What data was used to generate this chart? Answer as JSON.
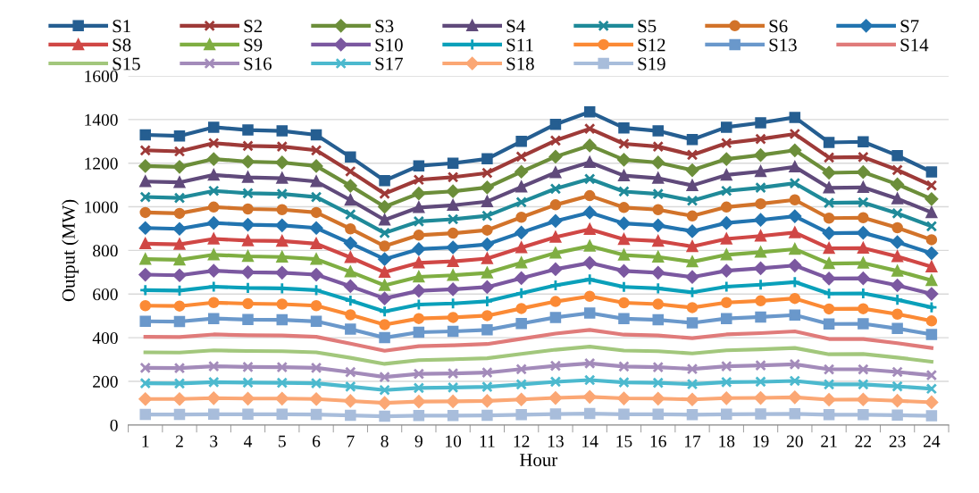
{
  "chart_data": {
    "type": "line",
    "xlabel": "Hour",
    "ylabel": "Output (MW)",
    "categories": [
      "1",
      "2",
      "3",
      "4",
      "5",
      "6",
      "7",
      "8",
      "9",
      "10",
      "11",
      "12",
      "13",
      "14",
      "15",
      "16",
      "17",
      "18",
      "19",
      "20",
      "21",
      "22",
      "23",
      "24"
    ],
    "ylim": [
      0,
      1600
    ],
    "yticks": [
      0,
      200,
      400,
      600,
      800,
      1000,
      1200,
      1400,
      1600
    ],
    "grid": "y",
    "legend": "top",
    "series": [
      {
        "name": "S1",
        "color": "#255e91",
        "marker": "square",
        "values": [
          1330,
          1325,
          1365,
          1352,
          1348,
          1330,
          1228,
          1120,
          1188,
          1200,
          1220,
          1300,
          1378,
          1435,
          1362,
          1348,
          1308,
          1365,
          1385,
          1410,
          1295,
          1298,
          1235,
          1160
        ]
      },
      {
        "name": "S2",
        "color": "#9e3a38",
        "marker": "cross",
        "values": [
          1259,
          1254,
          1292,
          1279,
          1276,
          1259,
          1162,
          1060,
          1124,
          1136,
          1155,
          1230,
          1304,
          1358,
          1289,
          1276,
          1238,
          1292,
          1311,
          1334,
          1226,
          1228,
          1169,
          1098
        ]
      },
      {
        "name": "S3",
        "color": "#6c8e3a",
        "marker": "diamond",
        "values": [
          1187,
          1183,
          1219,
          1207,
          1203,
          1187,
          1096,
          1000,
          1061,
          1071,
          1089,
          1161,
          1230,
          1281,
          1216,
          1203,
          1168,
          1219,
          1237,
          1259,
          1156,
          1159,
          1103,
          1036
        ]
      },
      {
        "name": "S4",
        "color": "#604a7b",
        "marker": "triangle",
        "values": [
          1116,
          1112,
          1146,
          1135,
          1131,
          1116,
          1031,
          940,
          997,
          1007,
          1024,
          1091,
          1157,
          1204,
          1143,
          1131,
          1098,
          1146,
          1162,
          1183,
          1087,
          1089,
          1037,
          974
        ]
      },
      {
        "name": "S5",
        "color": "#1f8a99",
        "marker": "cross",
        "values": [
          1045,
          1041,
          1073,
          1062,
          1059,
          1045,
          965,
          880,
          933,
          943,
          959,
          1021,
          1083,
          1128,
          1070,
          1059,
          1028,
          1073,
          1088,
          1108,
          1018,
          1020,
          970,
          911
        ]
      },
      {
        "name": "S6",
        "color": "#d2732a",
        "marker": "circle",
        "values": [
          974,
          970,
          999,
          990,
          987,
          974,
          899,
          820,
          870,
          879,
          893,
          952,
          1009,
          1051,
          997,
          987,
          958,
          999,
          1014,
          1032,
          948,
          950,
          904,
          849
        ]
      },
      {
        "name": "S7",
        "color": "#2274b0",
        "marker": "diamond",
        "values": [
          903,
          899,
          926,
          918,
          915,
          903,
          833,
          760,
          806,
          814,
          828,
          882,
          935,
          974,
          924,
          915,
          888,
          926,
          940,
          957,
          879,
          881,
          838,
          787
        ]
      },
      {
        "name": "S8",
        "color": "#d04745",
        "marker": "triangle",
        "values": [
          831,
          828,
          853,
          845,
          843,
          831,
          768,
          700,
          743,
          750,
          763,
          813,
          861,
          897,
          851,
          843,
          818,
          853,
          866,
          882,
          810,
          811,
          772,
          725
        ]
      },
      {
        "name": "S9",
        "color": "#7fae42",
        "marker": "triangle",
        "values": [
          760,
          757,
          780,
          773,
          770,
          760,
          702,
          640,
          679,
          686,
          697,
          743,
          788,
          820,
          779,
          770,
          748,
          780,
          792,
          806,
          740,
          742,
          706,
          663
        ]
      },
      {
        "name": "S10",
        "color": "#7b58a0",
        "marker": "diamond",
        "values": [
          689,
          686,
          707,
          700,
          698,
          689,
          636,
          580,
          615,
          622,
          632,
          673,
          714,
          743,
          706,
          698,
          678,
          707,
          718,
          731,
          671,
          672,
          640,
          601
        ]
      },
      {
        "name": "S11",
        "color": "#0aa0ba",
        "marker": "plus",
        "values": [
          618,
          616,
          634,
          628,
          626,
          618,
          570,
          520,
          552,
          557,
          567,
          604,
          640,
          667,
          633,
          626,
          608,
          634,
          643,
          655,
          602,
          603,
          574,
          539
        ]
      },
      {
        "name": "S12",
        "color": "#fb8a35",
        "marker": "circle",
        "values": [
          547,
          545,
          561,
          556,
          554,
          547,
          505,
          460,
          488,
          493,
          501,
          534,
          566,
          590,
          560,
          554,
          538,
          561,
          569,
          580,
          532,
          533,
          508,
          477
        ]
      },
      {
        "name": "S13",
        "color": "#6a98cb",
        "marker": "square",
        "values": [
          475,
          474,
          488,
          483,
          482,
          475,
          439,
          400,
          425,
          429,
          436,
          465,
          493,
          513,
          487,
          482,
          468,
          488,
          495,
          504,
          463,
          464,
          442,
          415
        ]
      },
      {
        "name": "S14",
        "color": "#e07b7a",
        "marker": "none",
        "values": [
          404,
          403,
          415,
          411,
          410,
          404,
          373,
          340,
          361,
          365,
          371,
          395,
          419,
          436,
          414,
          410,
          398,
          415,
          421,
          429,
          394,
          394,
          375,
          353
        ]
      },
      {
        "name": "S15",
        "color": "#a2c77c",
        "marker": "none",
        "values": [
          333,
          332,
          342,
          339,
          338,
          333,
          308,
          280,
          297,
          301,
          306,
          326,
          345,
          359,
          341,
          338,
          328,
          342,
          347,
          353,
          324,
          325,
          309,
          290
        ]
      },
      {
        "name": "S16",
        "color": "#a38bba",
        "marker": "cross",
        "values": [
          262,
          261,
          269,
          266,
          265,
          262,
          242,
          220,
          234,
          236,
          240,
          256,
          271,
          282,
          268,
          265,
          257,
          269,
          273,
          278,
          255,
          255,
          243,
          228
        ]
      },
      {
        "name": "S17",
        "color": "#4cb9ce",
        "marker": "cross",
        "values": [
          191,
          190,
          196,
          194,
          193,
          191,
          176,
          160,
          170,
          172,
          175,
          186,
          198,
          206,
          195,
          193,
          187,
          196,
          198,
          202,
          186,
          186,
          177,
          166
        ]
      },
      {
        "name": "S18",
        "color": "#fba774",
        "marker": "diamond",
        "values": [
          119,
          119,
          123,
          121,
          121,
          119,
          110,
          101,
          107,
          108,
          110,
          117,
          124,
          129,
          122,
          121,
          117,
          123,
          124,
          127,
          116,
          117,
          111,
          104
        ]
      },
      {
        "name": "S19",
        "color": "#a8bddb",
        "marker": "square",
        "values": [
          48,
          48,
          49,
          49,
          49,
          48,
          44,
          40,
          43,
          43,
          44,
          47,
          50,
          52,
          49,
          49,
          47,
          49,
          50,
          51,
          47,
          47,
          45,
          42
        ]
      }
    ]
  }
}
